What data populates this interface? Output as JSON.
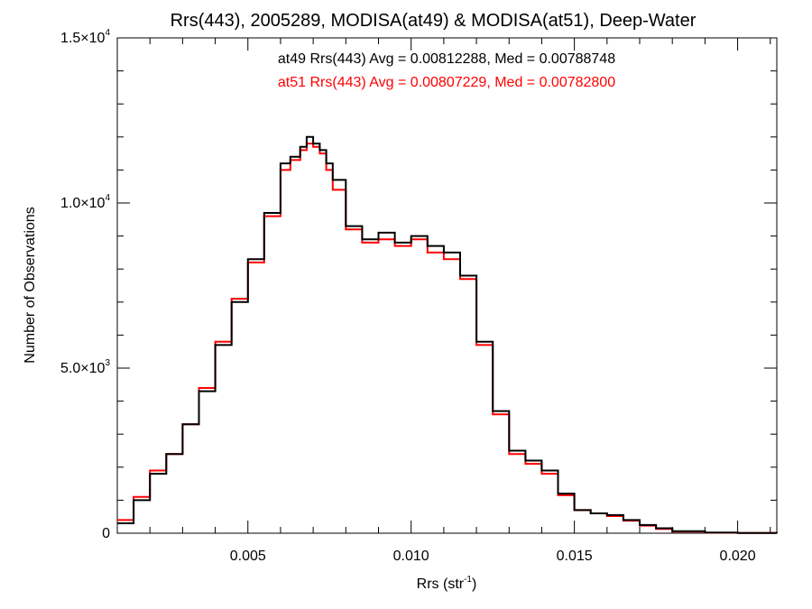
{
  "chart_data": {
    "type": "line",
    "title": "Rrs(443), 2005289, MODISA(at49) & MODISA(at51), Deep-Water",
    "xlabel": "Rrs (str",
    "xlabel_sup": "-1",
    "xlabel_end": ")",
    "ylabel": "Number of Observations",
    "xlim": [
      0.001,
      0.0212
    ],
    "ylim": [
      0,
      15000
    ],
    "x_ticks": [
      {
        "value": 0.005,
        "label": "0.005"
      },
      {
        "value": 0.01,
        "label": "0.010"
      },
      {
        "value": 0.015,
        "label": "0.015"
      },
      {
        "value": 0.02,
        "label": "0.020"
      }
    ],
    "y_ticks": [
      {
        "value": 0,
        "label": "0",
        "sup": ""
      },
      {
        "value": 5000,
        "label": "5.0×10",
        "sup": "3"
      },
      {
        "value": 10000,
        "label": "1.0×10",
        "sup": "4"
      },
      {
        "value": 15000,
        "label": "1.5×10",
        "sup": "4"
      }
    ],
    "annotations": [
      {
        "text": "at49 Rrs(443) Avg = 0.00812288, Med = 0.00788748",
        "color": "#000000"
      },
      {
        "text": "at51 Rrs(443) Avg = 0.00807229, Med = 0.00782800",
        "color": "#ff0000"
      }
    ],
    "x": [
      0.001,
      0.0015,
      0.002,
      0.0025,
      0.003,
      0.0035,
      0.004,
      0.0045,
      0.005,
      0.0055,
      0.006,
      0.0063,
      0.0066,
      0.0068,
      0.007,
      0.0072,
      0.0074,
      0.0076,
      0.008,
      0.0085,
      0.009,
      0.0095,
      0.01,
      0.0105,
      0.011,
      0.0115,
      0.012,
      0.0125,
      0.013,
      0.0135,
      0.014,
      0.0145,
      0.015,
      0.0155,
      0.016,
      0.0165,
      0.017,
      0.0175,
      0.018,
      0.019,
      0.02,
      0.0212
    ],
    "series": [
      {
        "name": "at49",
        "color": "#000000",
        "values": [
          300,
          1000,
          1800,
          2400,
          3300,
          4300,
          5700,
          7000,
          8300,
          9700,
          11200,
          11400,
          11700,
          12000,
          11800,
          11600,
          11200,
          10700,
          9300,
          8900,
          9100,
          8800,
          9000,
          8700,
          8500,
          7800,
          5800,
          3700,
          2500,
          2200,
          1900,
          1200,
          700,
          600,
          550,
          400,
          250,
          150,
          60,
          20,
          5,
          0
        ]
      },
      {
        "name": "at51",
        "color": "#ff0000",
        "values": [
          400,
          1100,
          1900,
          2400,
          3300,
          4400,
          5800,
          7100,
          8200,
          9600,
          11000,
          11300,
          11600,
          11800,
          11700,
          11500,
          11000,
          10400,
          9200,
          8800,
          8900,
          8700,
          8900,
          8500,
          8300,
          7700,
          5700,
          3600,
          2400,
          2100,
          1800,
          1150,
          700,
          600,
          520,
          380,
          230,
          130,
          50,
          15,
          5,
          0
        ]
      }
    ]
  }
}
